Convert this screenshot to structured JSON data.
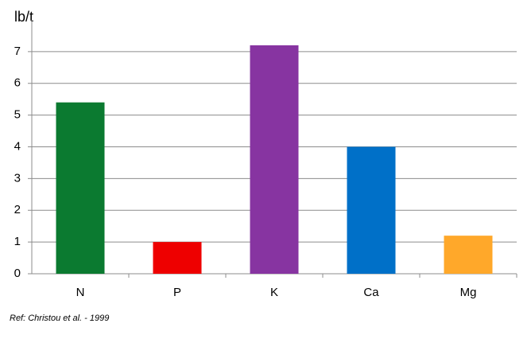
{
  "chart_data": {
    "type": "bar",
    "y_label": "lb/t",
    "categories": [
      "N",
      "P",
      "K",
      "Ca",
      "Mg"
    ],
    "values": [
      5.4,
      1,
      7.2,
      4,
      1.2
    ],
    "colors": [
      "#0b7a30",
      "#ee0000",
      "#8734a1",
      "#0070c8",
      "#ffa82a"
    ],
    "ylim": [
      0,
      8
    ],
    "yticks": [
      0,
      1,
      2,
      3,
      4,
      5,
      6,
      7
    ],
    "grid": true,
    "footnote": "Ref: Christou et al. - 1999"
  }
}
